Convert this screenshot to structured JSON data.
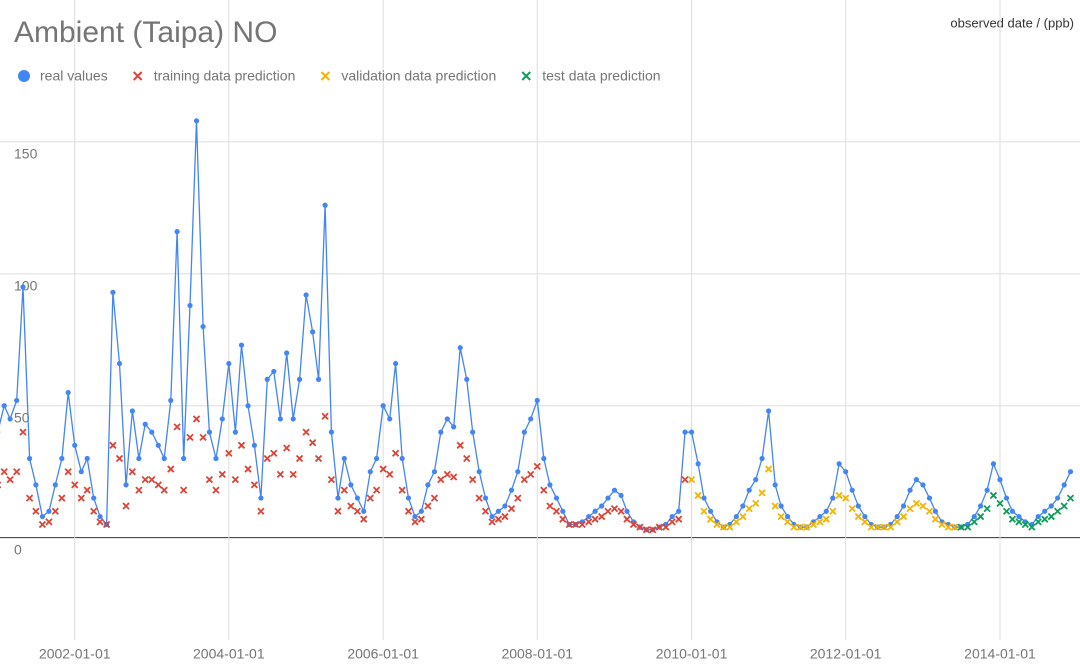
{
  "chart_data": {
    "type": "line",
    "title": "Ambient (Taipa) NO",
    "axis_label": "observed date / (ppb)",
    "legend": "top",
    "grid": true,
    "xlim": [
      "2001-01-12",
      "2015-01-15"
    ],
    "xticks": [
      "2002-01-01",
      "2004-01-01",
      "2006-01-01",
      "2008-01-01",
      "2010-01-01",
      "2012-01-01",
      "2014-01-01"
    ],
    "ylim": [
      -35,
      200
    ],
    "yticks": [
      0,
      50,
      100,
      150
    ],
    "x": [
      "2001-01-01",
      "2001-02-01",
      "2001-03-01",
      "2001-04-01",
      "2001-05-01",
      "2001-06-01",
      "2001-07-01",
      "2001-08-01",
      "2001-09-01",
      "2001-10-01",
      "2001-11-01",
      "2001-12-01",
      "2002-01-01",
      "2002-02-01",
      "2002-03-01",
      "2002-04-01",
      "2002-05-01",
      "2002-06-01",
      "2002-07-01",
      "2002-08-01",
      "2002-09-01",
      "2002-10-01",
      "2002-11-01",
      "2002-12-01",
      "2003-01-01",
      "2003-02-01",
      "2003-03-01",
      "2003-04-01",
      "2003-05-01",
      "2003-06-01",
      "2003-07-01",
      "2003-08-01",
      "2003-09-01",
      "2003-10-01",
      "2003-11-01",
      "2003-12-01",
      "2004-01-01",
      "2004-02-01",
      "2004-03-01",
      "2004-04-01",
      "2004-05-01",
      "2004-06-01",
      "2004-07-01",
      "2004-08-01",
      "2004-09-01",
      "2004-10-01",
      "2004-11-01",
      "2004-12-01",
      "2005-01-01",
      "2005-02-01",
      "2005-03-01",
      "2005-04-01",
      "2005-05-01",
      "2005-06-01",
      "2005-07-01",
      "2005-08-01",
      "2005-09-01",
      "2005-10-01",
      "2005-11-01",
      "2005-12-01",
      "2006-01-01",
      "2006-02-01",
      "2006-03-01",
      "2006-04-01",
      "2006-05-01",
      "2006-06-01",
      "2006-07-01",
      "2006-08-01",
      "2006-09-01",
      "2006-10-01",
      "2006-11-01",
      "2006-12-01",
      "2007-01-01",
      "2007-02-01",
      "2007-03-01",
      "2007-04-01",
      "2007-05-01",
      "2007-06-01",
      "2007-07-01",
      "2007-08-01",
      "2007-09-01",
      "2007-10-01",
      "2007-11-01",
      "2007-12-01",
      "2008-01-01",
      "2008-02-01",
      "2008-03-01",
      "2008-04-01",
      "2008-05-01",
      "2008-06-01",
      "2008-07-01",
      "2008-08-01",
      "2008-09-01",
      "2008-10-01",
      "2008-11-01",
      "2008-12-01",
      "2009-01-01",
      "2009-02-01",
      "2009-03-01",
      "2009-04-01",
      "2009-05-01",
      "2009-06-01",
      "2009-07-01",
      "2009-08-01",
      "2009-09-01",
      "2009-10-01",
      "2009-11-01",
      "2009-12-01",
      "2010-01-01",
      "2010-02-01",
      "2010-03-01",
      "2010-04-01",
      "2010-05-01",
      "2010-06-01",
      "2010-07-01",
      "2010-08-01",
      "2010-09-01",
      "2010-10-01",
      "2010-11-01",
      "2010-12-01",
      "2011-01-01",
      "2011-02-01",
      "2011-03-01",
      "2011-04-01",
      "2011-05-01",
      "2011-06-01",
      "2011-07-01",
      "2011-08-01",
      "2011-09-01",
      "2011-10-01",
      "2011-11-01",
      "2011-12-01",
      "2012-01-01",
      "2012-02-01",
      "2012-03-01",
      "2012-04-01",
      "2012-05-01",
      "2012-06-01",
      "2012-07-01",
      "2012-08-01",
      "2012-09-01",
      "2012-10-01",
      "2012-11-01",
      "2012-12-01",
      "2013-01-01",
      "2013-02-01",
      "2013-03-01",
      "2013-04-01",
      "2013-05-01",
      "2013-06-01",
      "2013-07-01",
      "2013-08-01",
      "2013-09-01",
      "2013-10-01",
      "2013-11-01",
      "2013-12-01",
      "2014-01-01",
      "2014-02-01",
      "2014-03-01",
      "2014-04-01",
      "2014-05-01",
      "2014-06-01",
      "2014-07-01",
      "2014-08-01",
      "2014-09-01",
      "2014-10-01",
      "2014-11-01",
      "2014-12-01"
    ],
    "series": [
      {
        "name": "real values",
        "color": "#4285f4",
        "marker": "circle",
        "values": [
          40,
          50,
          45,
          52,
          95,
          30,
          20,
          8,
          10,
          20,
          30,
          55,
          35,
          25,
          30,
          15,
          8,
          5,
          93,
          66,
          20,
          48,
          30,
          43,
          40,
          35,
          30,
          52,
          116,
          30,
          88,
          158,
          80,
          40,
          30,
          45,
          66,
          40,
          73,
          50,
          35,
          15,
          60,
          63,
          45,
          70,
          45,
          60,
          92,
          78,
          60,
          126,
          40,
          15,
          30,
          20,
          15,
          10,
          25,
          30,
          50,
          45,
          66,
          30,
          15,
          8,
          10,
          20,
          25,
          40,
          45,
          42,
          72,
          60,
          40,
          25,
          15,
          8,
          10,
          12,
          18,
          25,
          40,
          45,
          52,
          30,
          20,
          15,
          10,
          5,
          5,
          6,
          8,
          10,
          12,
          15,
          18,
          16,
          10,
          6,
          4,
          3,
          3,
          4,
          5,
          8,
          10,
          40,
          40,
          28,
          15,
          10,
          6,
          4,
          5,
          8,
          12,
          18,
          22,
          30,
          48,
          20,
          12,
          8,
          5,
          4,
          4,
          6,
          8,
          10,
          15,
          28,
          25,
          18,
          12,
          8,
          5,
          4,
          4,
          5,
          8,
          12,
          18,
          22,
          20,
          15,
          10,
          6,
          5,
          4,
          4,
          5,
          8,
          12,
          18,
          28,
          22,
          15,
          10,
          8,
          6,
          5,
          8,
          10,
          12,
          15,
          20,
          25
        ]
      },
      {
        "name": "training data prediction",
        "color": "#db4437",
        "marker": "x",
        "values": [
          20,
          25,
          22,
          25,
          40,
          15,
          10,
          5,
          6,
          10,
          15,
          25,
          20,
          15,
          18,
          10,
          6,
          5,
          35,
          30,
          12,
          25,
          18,
          22,
          22,
          20,
          18,
          26,
          42,
          18,
          38,
          45,
          38,
          22,
          18,
          24,
          32,
          22,
          35,
          26,
          20,
          10,
          30,
          32,
          24,
          34,
          24,
          30,
          40,
          36,
          30,
          46,
          22,
          10,
          18,
          12,
          10,
          7,
          15,
          18,
          26,
          24,
          32,
          18,
          10,
          6,
          7,
          12,
          15,
          22,
          24,
          23,
          35,
          30,
          22,
          15,
          10,
          6,
          7,
          8,
          11,
          15,
          22,
          24,
          27,
          18,
          12,
          10,
          7,
          5,
          5,
          5,
          6,
          7,
          8,
          10,
          11,
          10,
          7,
          5,
          4,
          3,
          3,
          4,
          4,
          6,
          7,
          22,
          null,
          null,
          null,
          null,
          null,
          null,
          null,
          null,
          null,
          null,
          null,
          null,
          null,
          null,
          null,
          null,
          null,
          null,
          null,
          null,
          null,
          null,
          null,
          null,
          null,
          null,
          null,
          null,
          null,
          null,
          null,
          null,
          null,
          null,
          null,
          null,
          null,
          null,
          null,
          null,
          null,
          null,
          null,
          null,
          null,
          null,
          null,
          null,
          null,
          null,
          null,
          null,
          null,
          null,
          null,
          null,
          null,
          null,
          null,
          null
        ]
      },
      {
        "name": "validation data prediction",
        "color": "#f4b400",
        "marker": "x",
        "values": [
          null,
          null,
          null,
          null,
          null,
          null,
          null,
          null,
          null,
          null,
          null,
          null,
          null,
          null,
          null,
          null,
          null,
          null,
          null,
          null,
          null,
          null,
          null,
          null,
          null,
          null,
          null,
          null,
          null,
          null,
          null,
          null,
          null,
          null,
          null,
          null,
          null,
          null,
          null,
          null,
          null,
          null,
          null,
          null,
          null,
          null,
          null,
          null,
          null,
          null,
          null,
          null,
          null,
          null,
          null,
          null,
          null,
          null,
          null,
          null,
          null,
          null,
          null,
          null,
          null,
          null,
          null,
          null,
          null,
          null,
          null,
          null,
          null,
          null,
          null,
          null,
          null,
          null,
          null,
          null,
          null,
          null,
          null,
          null,
          null,
          null,
          null,
          null,
          null,
          null,
          null,
          null,
          null,
          null,
          null,
          null,
          null,
          null,
          null,
          null,
          null,
          null,
          null,
          null,
          null,
          null,
          null,
          null,
          22,
          16,
          10,
          7,
          5,
          4,
          4,
          6,
          8,
          11,
          13,
          17,
          26,
          12,
          8,
          6,
          4,
          4,
          4,
          5,
          6,
          7,
          10,
          16,
          15,
          11,
          8,
          6,
          4,
          4,
          4,
          4,
          6,
          8,
          11,
          13,
          12,
          10,
          7,
          5,
          4,
          4,
          null,
          null,
          null,
          null,
          null,
          null,
          null,
          null,
          null,
          null,
          null,
          null,
          null,
          null,
          null,
          null,
          null,
          null
        ]
      },
      {
        "name": "test data prediction",
        "color": "#0f9d58",
        "marker": "x",
        "values": [
          null,
          null,
          null,
          null,
          null,
          null,
          null,
          null,
          null,
          null,
          null,
          null,
          null,
          null,
          null,
          null,
          null,
          null,
          null,
          null,
          null,
          null,
          null,
          null,
          null,
          null,
          null,
          null,
          null,
          null,
          null,
          null,
          null,
          null,
          null,
          null,
          null,
          null,
          null,
          null,
          null,
          null,
          null,
          null,
          null,
          null,
          null,
          null,
          null,
          null,
          null,
          null,
          null,
          null,
          null,
          null,
          null,
          null,
          null,
          null,
          null,
          null,
          null,
          null,
          null,
          null,
          null,
          null,
          null,
          null,
          null,
          null,
          null,
          null,
          null,
          null,
          null,
          null,
          null,
          null,
          null,
          null,
          null,
          null,
          null,
          null,
          null,
          null,
          null,
          null,
          null,
          null,
          null,
          null,
          null,
          null,
          null,
          null,
          null,
          null,
          null,
          null,
          null,
          null,
          null,
          null,
          null,
          null,
          null,
          null,
          null,
          null,
          null,
          null,
          null,
          null,
          null,
          null,
          null,
          null,
          null,
          null,
          null,
          null,
          null,
          null,
          null,
          null,
          null,
          null,
          null,
          null,
          null,
          null,
          null,
          null,
          null,
          null,
          null,
          null,
          null,
          null,
          null,
          null,
          null,
          null,
          null,
          null,
          null,
          null,
          4,
          4,
          6,
          8,
          11,
          16,
          13,
          10,
          7,
          6,
          5,
          4,
          6,
          7,
          8,
          10,
          12,
          15
        ]
      }
    ]
  }
}
